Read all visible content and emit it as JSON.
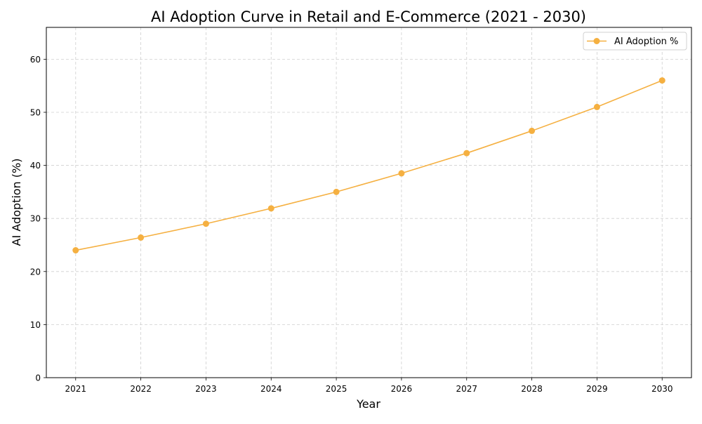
{
  "chart_data": {
    "type": "line",
    "title": "AI Adoption Curve in Retail and E-Commerce (2021 - 2030)",
    "xlabel": "Year",
    "ylabel": "AI Adoption (%)",
    "categories": [
      "2021",
      "2022",
      "2023",
      "2024",
      "2025",
      "2026",
      "2027",
      "2028",
      "2029",
      "2030"
    ],
    "series": [
      {
        "name": "AI Adoption %",
        "values": [
          24.0,
          26.4,
          29.0,
          31.9,
          35.0,
          38.5,
          42.3,
          46.5,
          51.0,
          56.0
        ],
        "color": "#f5b041",
        "marker": "circle"
      }
    ],
    "xlim": [
      2020.55,
      2030.45
    ],
    "ylim": [
      0,
      66
    ],
    "yticks": [
      0,
      10,
      20,
      30,
      40,
      50,
      60
    ],
    "grid": true,
    "legend": "top-right"
  }
}
